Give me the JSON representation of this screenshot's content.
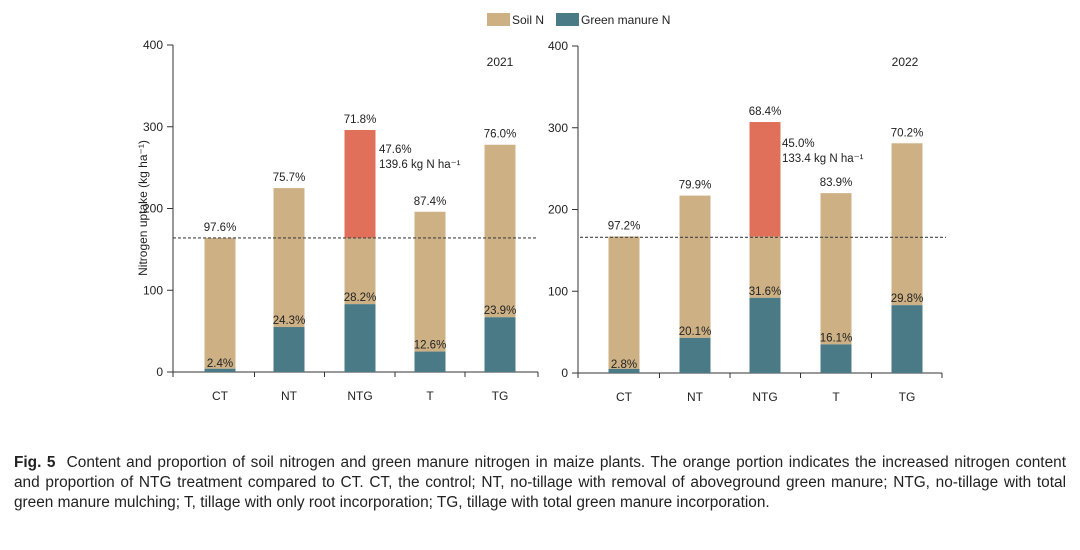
{
  "legend": {
    "soil": {
      "label": "Soil N",
      "color": "#cdb185"
    },
    "green": {
      "label": "Green manure N",
      "color": "#497a86"
    }
  },
  "increase_color": "#e0705a",
  "chart_data": [
    {
      "type": "bar",
      "stacked": true,
      "year": "2021",
      "ylabel": "Nitrogen uptake (kg ha⁻¹)",
      "ylim": [
        0,
        400
      ],
      "yticks": [
        0,
        100,
        200,
        300,
        400
      ],
      "categories": [
        "CT",
        "NT",
        "NTG",
        "T",
        "TG"
      ],
      "ct_reference_line": 164,
      "series": [
        {
          "name": "Green manure N",
          "values": [
            4,
            55,
            83,
            25,
            67
          ]
        },
        {
          "name": "Soil N",
          "values": [
            160,
            170,
            81,
            171,
            211
          ]
        },
        {
          "name": "Increase vs CT (NTG)",
          "values": [
            0,
            0,
            132,
            0,
            0
          ]
        }
      ],
      "top_labels": [
        "97.6%",
        "75.7%",
        "71.8%",
        "87.4%",
        "76.0%"
      ],
      "bottom_labels": [
        "2.4%",
        "24.3%",
        "28.2%",
        "12.6%",
        "23.9%"
      ],
      "annotation": {
        "line1": "47.6%",
        "line2": "139.6 kg N ha⁻¹"
      }
    },
    {
      "type": "bar",
      "stacked": true,
      "year": "2022",
      "ylabel": "",
      "ylim": [
        0,
        400
      ],
      "yticks": [
        0,
        100,
        200,
        300,
        400
      ],
      "categories": [
        "CT",
        "NT",
        "NTG",
        "T",
        "TG"
      ],
      "ct_reference_line": 166,
      "series": [
        {
          "name": "Green manure N",
          "values": [
            5,
            43,
            92,
            35,
            83
          ]
        },
        {
          "name": "Soil N",
          "values": [
            162,
            174,
            75,
            185,
            198
          ]
        },
        {
          "name": "Increase vs CT (NTG)",
          "values": [
            0,
            0,
            140,
            0,
            0
          ]
        }
      ],
      "top_labels": [
        "97.2%",
        "79.9%",
        "68.4%",
        "83.9%",
        "70.2%"
      ],
      "bottom_labels": [
        "2.8%",
        "20.1%",
        "31.6%",
        "16.1%",
        "29.8%"
      ],
      "annotation": {
        "line1": "45.0%",
        "line2": "133.4 kg N ha⁻¹"
      }
    }
  ],
  "caption": {
    "label": "Fig. 5",
    "text": "Content and proportion of soil nitrogen and green manure nitrogen in maize plants.  The orange portion indicates the increased nitrogen content and proportion of NTG treatment compared to CT.  CT, the control; NT, no-tillage with removal of aboveground green manure; NTG, no-tillage with total green manure mulching; T, tillage with only root incorporation; TG, tillage with total green manure incorporation."
  }
}
